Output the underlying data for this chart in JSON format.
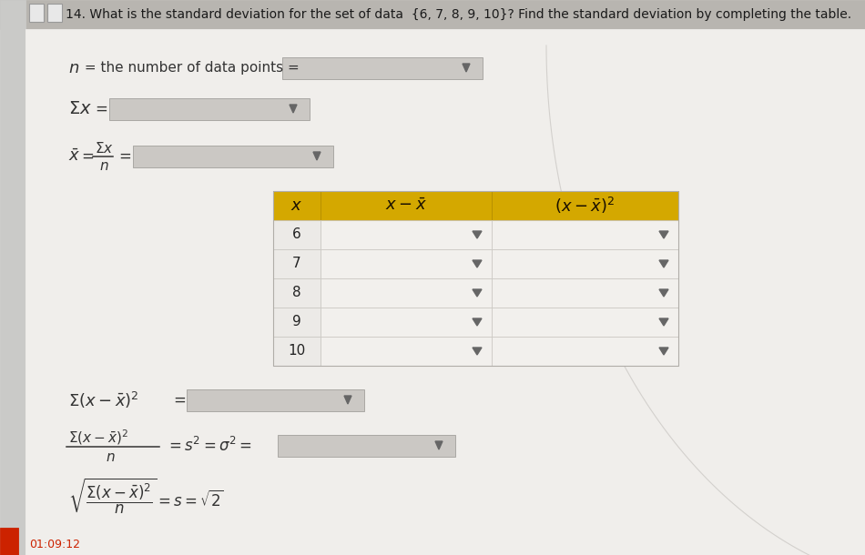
{
  "bg_color": "#d4d0cc",
  "page_color": "#f0eeeb",
  "white": "#f8f7f5",
  "gold": "#d4a800",
  "light_gray_cell": "#e8e6e3",
  "darker_gray_cell": "#dedad6",
  "text_color": "#1a1a1a",
  "title": "14. What is the standard deviation for the set of data  {6, 7, 8, 9, 10}? Find the standard deviation by completing the table.",
  "data_values": [
    "6",
    "7",
    "8",
    "9",
    "10"
  ],
  "timestamp": "01:09:12",
  "input_box_color": "#cbc8c4",
  "input_box_edge": "#aaa8a4"
}
